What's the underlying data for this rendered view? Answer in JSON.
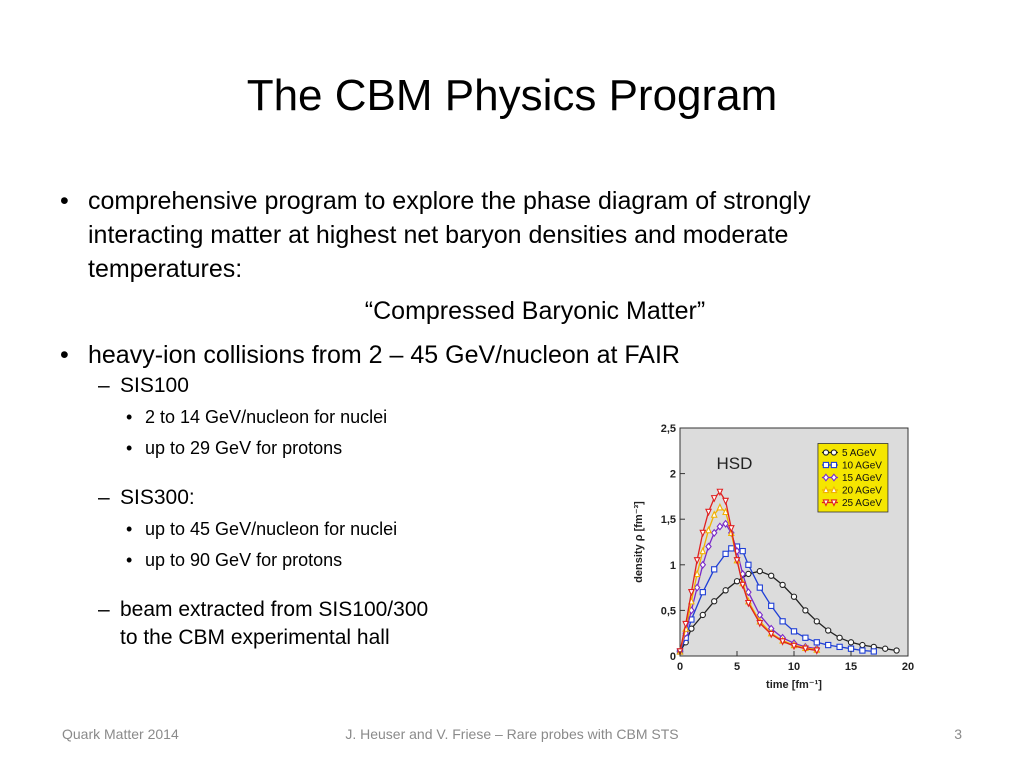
{
  "slide": {
    "title": "The CBM Physics Program",
    "bullets": {
      "b1_mark": "•",
      "b1_line1": "comprehensive program to explore the phase diagram of strongly",
      "b1_line2": "interacting matter at highest net baryon densities and moderate",
      "b1_line3": "temperatures:",
      "quote": "“Compressed Baryonic Matter”",
      "b2_mark": "•",
      "b2_text": "heavy-ion collisions from 2 – 45 GeV/nucleon at FAIR",
      "dash": "–",
      "dot": "•",
      "sis100": "SIS100",
      "sis100_a": "2 to 14 GeV/nucleon for nuclei",
      "sis100_b": "up to 29 GeV for protons",
      "sis300": "SIS300:",
      "sis300_a": "up to 45 GeV/nucleon for nuclei",
      "sis300_b": "up to 90 GeV for protons",
      "beam_line1": "beam extracted from SIS100/300",
      "beam_line2": "to the CBM experimental hall"
    },
    "footer": {
      "left": "Quark Matter 2014",
      "center": "J. Heuser and V. Friese – Rare probes with CBM STS",
      "right": "3"
    }
  },
  "chart_data": {
    "type": "line",
    "title": "",
    "annotation": "HSD",
    "xlabel": "time [fm⁻¹]",
    "ylabel": "density ρ [fm⁻³]",
    "xlim": [
      0,
      20
    ],
    "ylim": [
      0,
      2.5
    ],
    "xticks": [
      0,
      5,
      10,
      15,
      20
    ],
    "yticks": [
      0,
      0.5,
      1,
      1.5,
      2,
      2.5
    ],
    "ytick_labels": [
      "0",
      "0,5",
      "1",
      "1,5",
      "2",
      "2,5"
    ],
    "background": "#dcdcdc",
    "legend": {
      "placement": "top-right",
      "background": "#f5e600"
    },
    "series": [
      {
        "name": "5 AGeV",
        "color": "#222222",
        "marker": "circle",
        "x": [
          0,
          0.5,
          1,
          2,
          3,
          4,
          5,
          6,
          7,
          8,
          9,
          10,
          11,
          12,
          13,
          14,
          15,
          16,
          17,
          18,
          19
        ],
        "y": [
          0.05,
          0.15,
          0.3,
          0.45,
          0.6,
          0.72,
          0.82,
          0.9,
          0.93,
          0.88,
          0.78,
          0.65,
          0.5,
          0.38,
          0.28,
          0.2,
          0.15,
          0.12,
          0.1,
          0.08,
          0.06
        ]
      },
      {
        "name": "10 AGeV",
        "color": "#1f3fd6",
        "marker": "square",
        "x": [
          0,
          0.5,
          1,
          2,
          3,
          4,
          4.5,
          5,
          5.5,
          6,
          7,
          8,
          9,
          10,
          11,
          12,
          13,
          14,
          15,
          16,
          17
        ],
        "y": [
          0.05,
          0.2,
          0.4,
          0.7,
          0.95,
          1.12,
          1.18,
          1.2,
          1.15,
          1.0,
          0.75,
          0.55,
          0.38,
          0.27,
          0.2,
          0.15,
          0.12,
          0.1,
          0.08,
          0.06,
          0.05
        ]
      },
      {
        "name": "15 AGeV",
        "color": "#7a2ac9",
        "marker": "diamond",
        "x": [
          0,
          0.5,
          1,
          1.5,
          2,
          2.5,
          3,
          3.5,
          4,
          4.5,
          5,
          5.5,
          6,
          7,
          8,
          9,
          10,
          11,
          12
        ],
        "y": [
          0.05,
          0.25,
          0.5,
          0.75,
          1.0,
          1.2,
          1.35,
          1.42,
          1.45,
          1.35,
          1.15,
          0.9,
          0.7,
          0.45,
          0.3,
          0.2,
          0.14,
          0.1,
          0.08
        ]
      },
      {
        "name": "20 AGeV",
        "color": "#f2b100",
        "marker": "triangle-up",
        "x": [
          0,
          0.5,
          1,
          1.5,
          2,
          2.5,
          3,
          3.5,
          4,
          4.5,
          5,
          5.5,
          6,
          7,
          8,
          9,
          10,
          11,
          12
        ],
        "y": [
          0.05,
          0.3,
          0.6,
          0.9,
          1.15,
          1.38,
          1.55,
          1.63,
          1.58,
          1.35,
          1.05,
          0.8,
          0.6,
          0.38,
          0.25,
          0.17,
          0.12,
          0.09,
          0.07
        ]
      },
      {
        "name": "25 AGeV",
        "color": "#e02020",
        "marker": "triangle-down",
        "x": [
          0,
          0.5,
          1,
          1.5,
          2,
          2.5,
          3,
          3.5,
          4,
          4.5,
          5,
          5.5,
          6,
          7,
          8,
          9,
          10,
          11,
          12
        ],
        "y": [
          0.05,
          0.35,
          0.7,
          1.05,
          1.35,
          1.58,
          1.73,
          1.8,
          1.7,
          1.4,
          1.05,
          0.78,
          0.58,
          0.36,
          0.24,
          0.16,
          0.11,
          0.08,
          0.06
        ]
      }
    ]
  }
}
